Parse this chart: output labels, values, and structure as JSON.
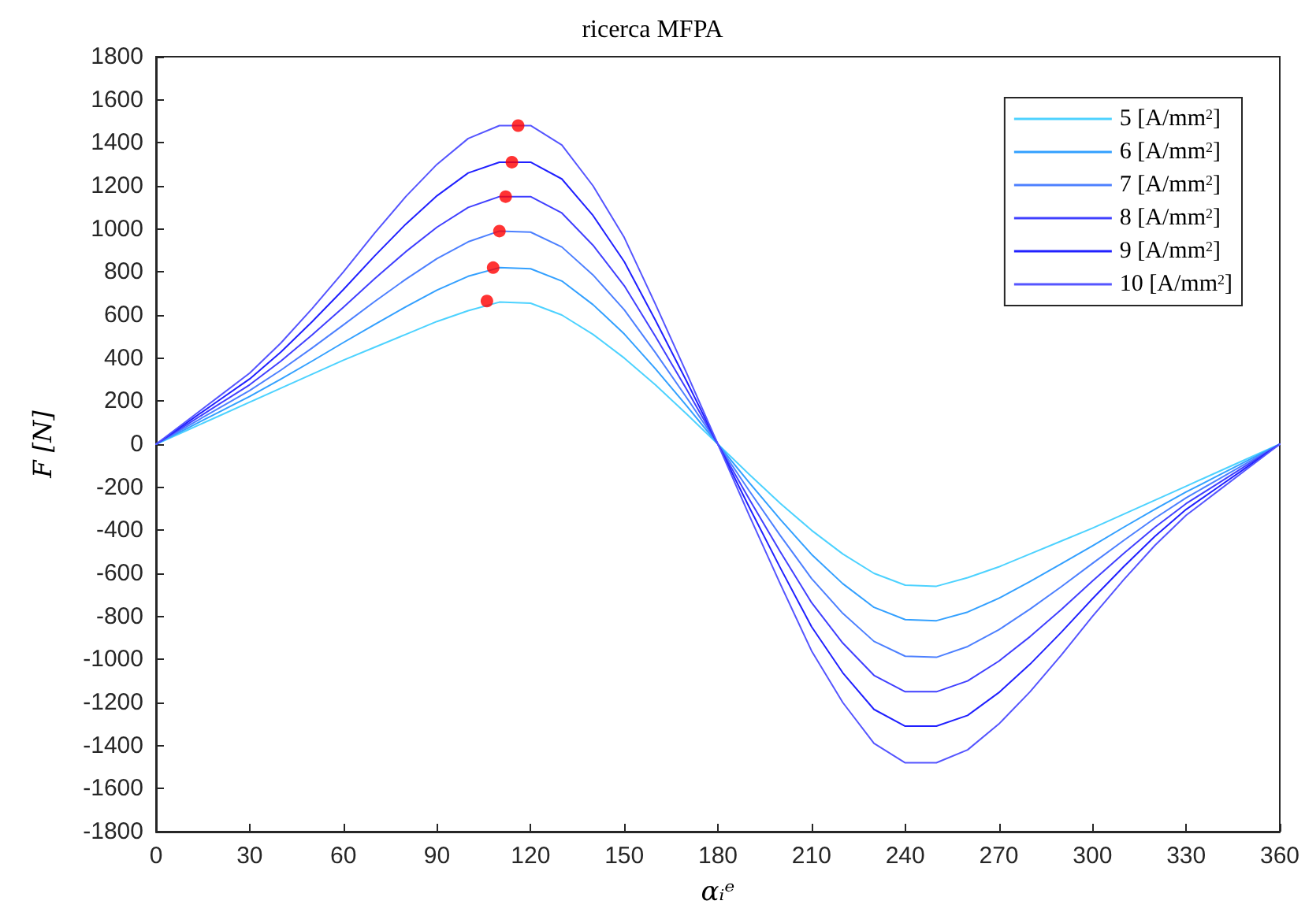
{
  "chart_data": {
    "type": "line",
    "title": "ricerca MFPA",
    "xlabel": "αᵢᵉ",
    "ylabel": "F [N]",
    "x": [
      0,
      10,
      20,
      30,
      40,
      50,
      60,
      70,
      80,
      90,
      100,
      110,
      120,
      130,
      140,
      150,
      160,
      170,
      180,
      190,
      200,
      210,
      220,
      230,
      240,
      250,
      260,
      270,
      280,
      290,
      300,
      310,
      320,
      330,
      340,
      350,
      360
    ],
    "xlim": [
      0,
      360
    ],
    "xticks": [
      0,
      30,
      60,
      90,
      120,
      150,
      180,
      210,
      240,
      270,
      300,
      330,
      360
    ],
    "ylim": [
      -1800,
      1800
    ],
    "yticks": [
      -1800,
      -1600,
      -1400,
      -1200,
      -1000,
      -800,
      -600,
      -400,
      -200,
      0,
      200,
      400,
      600,
      800,
      1000,
      1200,
      1400,
      1600,
      1800
    ],
    "grid": false,
    "legend": "top right",
    "marker": "none",
    "line_style": "solid",
    "series": [
      {
        "name": "5 [A/mm$^{2}$]",
        "color": "#4dd2ff",
        "values": [
          0,
          65,
          130,
          195,
          260,
          325,
          390,
          450,
          510,
          570,
          620,
          660,
          655,
          600,
          510,
          400,
          275,
          140,
          0,
          -140,
          -275,
          -400,
          -510,
          -600,
          -655,
          -660,
          -620,
          -570,
          -510,
          -450,
          -390,
          -325,
          -260,
          -195,
          -130,
          -65,
          0
        ]
      },
      {
        "name": "6 [A/mm$^{2}$]",
        "color": "#33a0ff",
        "values": [
          0,
          74,
          148,
          222,
          302,
          386,
          472,
          556,
          638,
          716,
          780,
          820,
          815,
          758,
          648,
          512,
          350,
          178,
          0,
          -178,
          -350,
          -512,
          -648,
          -758,
          -815,
          -820,
          -780,
          -716,
          -638,
          -556,
          -472,
          -386,
          -302,
          -222,
          -148,
          -74,
          0
        ]
      },
      {
        "name": "7 [A/mm$^{2}$]",
        "color": "#4d80ff",
        "values": [
          0,
          83,
          166,
          249,
          344,
          447,
          554,
          662,
          766,
          862,
          940,
          990,
          985,
          916,
          786,
          624,
          425,
          216,
          0,
          -216,
          -425,
          -624,
          -786,
          -916,
          -985,
          -990,
          -940,
          -862,
          -766,
          -662,
          -554,
          -447,
          -344,
          -249,
          -166,
          -83,
          0
        ]
      },
      {
        "name": "8 [A/mm$^{2}$]",
        "color": "#4040ff",
        "values": [
          0,
          92,
          184,
          276,
          386,
          508,
          636,
          768,
          894,
          1008,
          1100,
          1150,
          1150,
          1074,
          924,
          736,
          500,
          254,
          0,
          -254,
          -500,
          -736,
          -924,
          -1074,
          -1150,
          -1150,
          -1100,
          -1008,
          -894,
          -768,
          -636,
          -508,
          -386,
          -276,
          -184,
          -92,
          0
        ]
      },
      {
        "name": "9 [A/mm$^{2}$]",
        "color": "#2020ff",
        "values": [
          0,
          101,
          202,
          303,
          428,
          569,
          718,
          874,
          1022,
          1154,
          1260,
          1310,
          1310,
          1232,
          1062,
          848,
          575,
          292,
          0,
          -292,
          -575,
          -848,
          -1062,
          -1232,
          -1310,
          -1310,
          -1260,
          -1154,
          -1022,
          -874,
          -718,
          -569,
          -428,
          -303,
          -202,
          -101,
          0
        ]
      },
      {
        "name": "10 [A/mm$^{2}$]",
        "color": "#5555ff",
        "values": [
          0,
          110,
          220,
          330,
          470,
          630,
          800,
          980,
          1150,
          1300,
          1420,
          1480,
          1480,
          1390,
          1200,
          960,
          650,
          330,
          0,
          -330,
          -650,
          -960,
          -1200,
          -1390,
          -1480,
          -1480,
          -1420,
          -1300,
          -1150,
          -980,
          -800,
          -630,
          -470,
          -330,
          -220,
          -110,
          0
        ]
      },
      {
        "type": "scatter",
        "marker": "circle",
        "color": "#ff0000",
        "x": [
          106,
          108,
          110,
          112,
          114,
          116
        ],
        "values": [
          665,
          820,
          990,
          1150,
          1310,
          1480
        ]
      }
    ]
  }
}
